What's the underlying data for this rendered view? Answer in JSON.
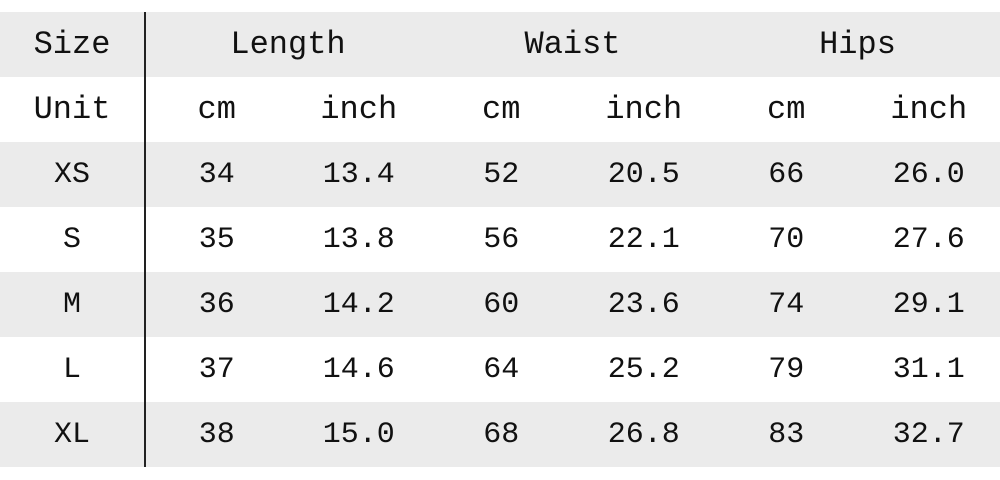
{
  "table": {
    "header": [
      "Size",
      "Length",
      "Waist",
      "Hips"
    ],
    "units": [
      "Unit",
      "cm",
      "inch",
      "cm",
      "inch",
      "cm",
      "inch"
    ],
    "rows": [
      [
        "XS",
        "34",
        "13.4",
        "52",
        "20.5",
        "66",
        "26.0"
      ],
      [
        "S",
        "35",
        "13.8",
        "56",
        "22.1",
        "70",
        "27.6"
      ],
      [
        "M",
        "36",
        "14.2",
        "60",
        "23.6",
        "74",
        "29.1"
      ],
      [
        "L",
        "37",
        "14.6",
        "64",
        "25.2",
        "79",
        "31.1"
      ],
      [
        "XL",
        "38",
        "15.0",
        "68",
        "26.8",
        "83",
        "32.7"
      ]
    ]
  }
}
